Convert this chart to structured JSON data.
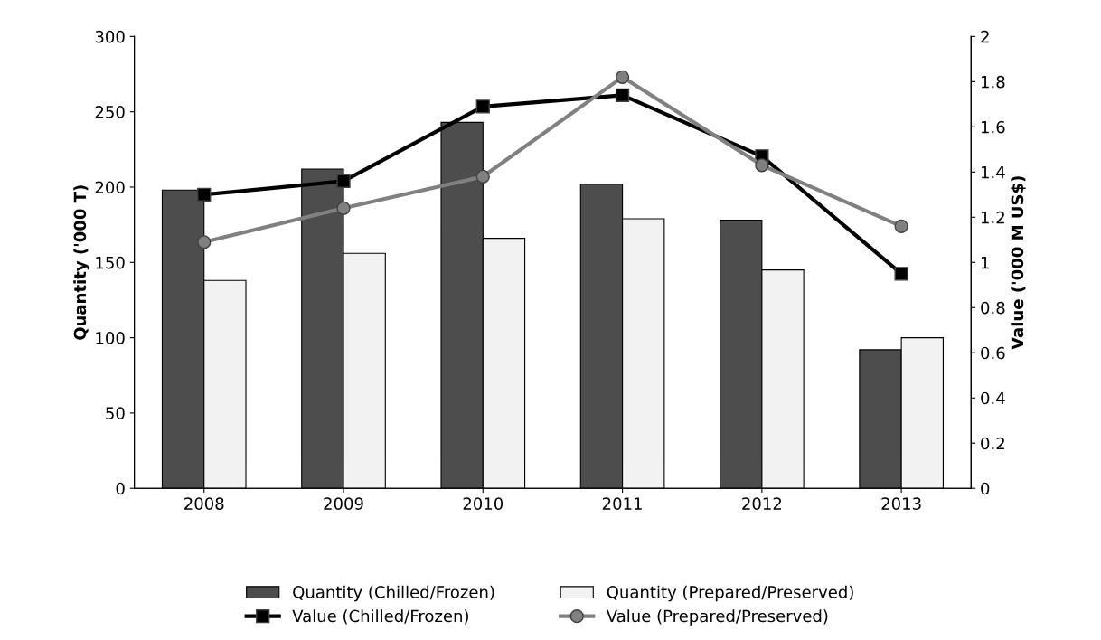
{
  "chart_data": {
    "type": "bar",
    "categories": [
      "2008",
      "2009",
      "2010",
      "2011",
      "2012",
      "2013"
    ],
    "ylabel": "Quantity ('000 T)",
    "y2label": "Value ('000 M US$)",
    "ylim": [
      0,
      300
    ],
    "yticks": [
      0,
      50,
      100,
      150,
      200,
      250,
      300
    ],
    "y2lim": [
      0,
      2
    ],
    "y2ticks": [
      0,
      0.2,
      0.4,
      0.6,
      0.8,
      1,
      1.2,
      1.4,
      1.6,
      1.8,
      2
    ],
    "legend": "bottom",
    "grid": false,
    "series": [
      {
        "name": "Quantity (Chilled/Frozen)",
        "color": "#4d4d4d",
        "values": [
          198,
          212,
          243,
          202,
          178,
          92
        ]
      },
      {
        "name": "Quantity (Prepared/Preserved)",
        "color": "#f2f2f2",
        "values": [
          138,
          156,
          166,
          179,
          145,
          100
        ]
      },
      {
        "name": "Value (Chilled/Frozen)",
        "type": "line",
        "axis": "y2",
        "marker": "square",
        "color": "#000000",
        "values": [
          1.3,
          1.36,
          1.69,
          1.74,
          1.47,
          0.95
        ]
      },
      {
        "name": "Value (Prepared/Preserved)",
        "type": "line",
        "axis": "y2",
        "marker": "circle",
        "color": "#808080",
        "values": [
          1.09,
          1.24,
          1.38,
          1.82,
          1.43,
          1.16
        ]
      }
    ]
  }
}
